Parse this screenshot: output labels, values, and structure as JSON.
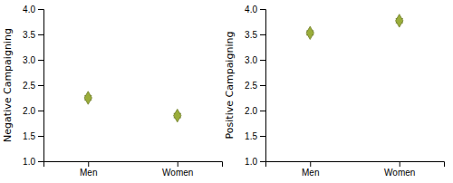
{
  "chart_data": [
    {
      "type": "errorbar",
      "y_label": "Negative Campaigning",
      "categories": [
        "Men",
        "Women"
      ],
      "values": [
        2.25,
        1.9
      ],
      "errors": [
        0.04,
        0.04
      ],
      "color": "#9aad3a",
      "marker": "diamond",
      "ylim": [
        1.0,
        4.0
      ],
      "yticks": [
        {
          "value": 1.0,
          "label": "1.0"
        },
        1.5,
        {
          "value": 2.0,
          "label": "2.0"
        },
        2.5,
        {
          "value": 3.0,
          "label": "3.0"
        },
        3.5,
        {
          "value": 4.0,
          "label": "4.0"
        }
      ]
    },
    {
      "type": "errorbar",
      "y_label": "Positive Campaigning",
      "categories": [
        "Men",
        "Women"
      ],
      "values": [
        3.53,
        3.77
      ],
      "errors": [
        0.04,
        0.04
      ],
      "color": "#9aad3a",
      "marker": "diamond",
      "ylim": [
        1.0,
        4.0
      ],
      "yticks": [
        {
          "value": 1.0,
          "label": "1.0"
        },
        1.5,
        {
          "value": 2.0,
          "label": "2.0"
        },
        2.5,
        {
          "value": 3.0,
          "label": "3.0"
        },
        3.5,
        {
          "value": 4.0,
          "label": "4.0"
        }
      ]
    }
  ]
}
